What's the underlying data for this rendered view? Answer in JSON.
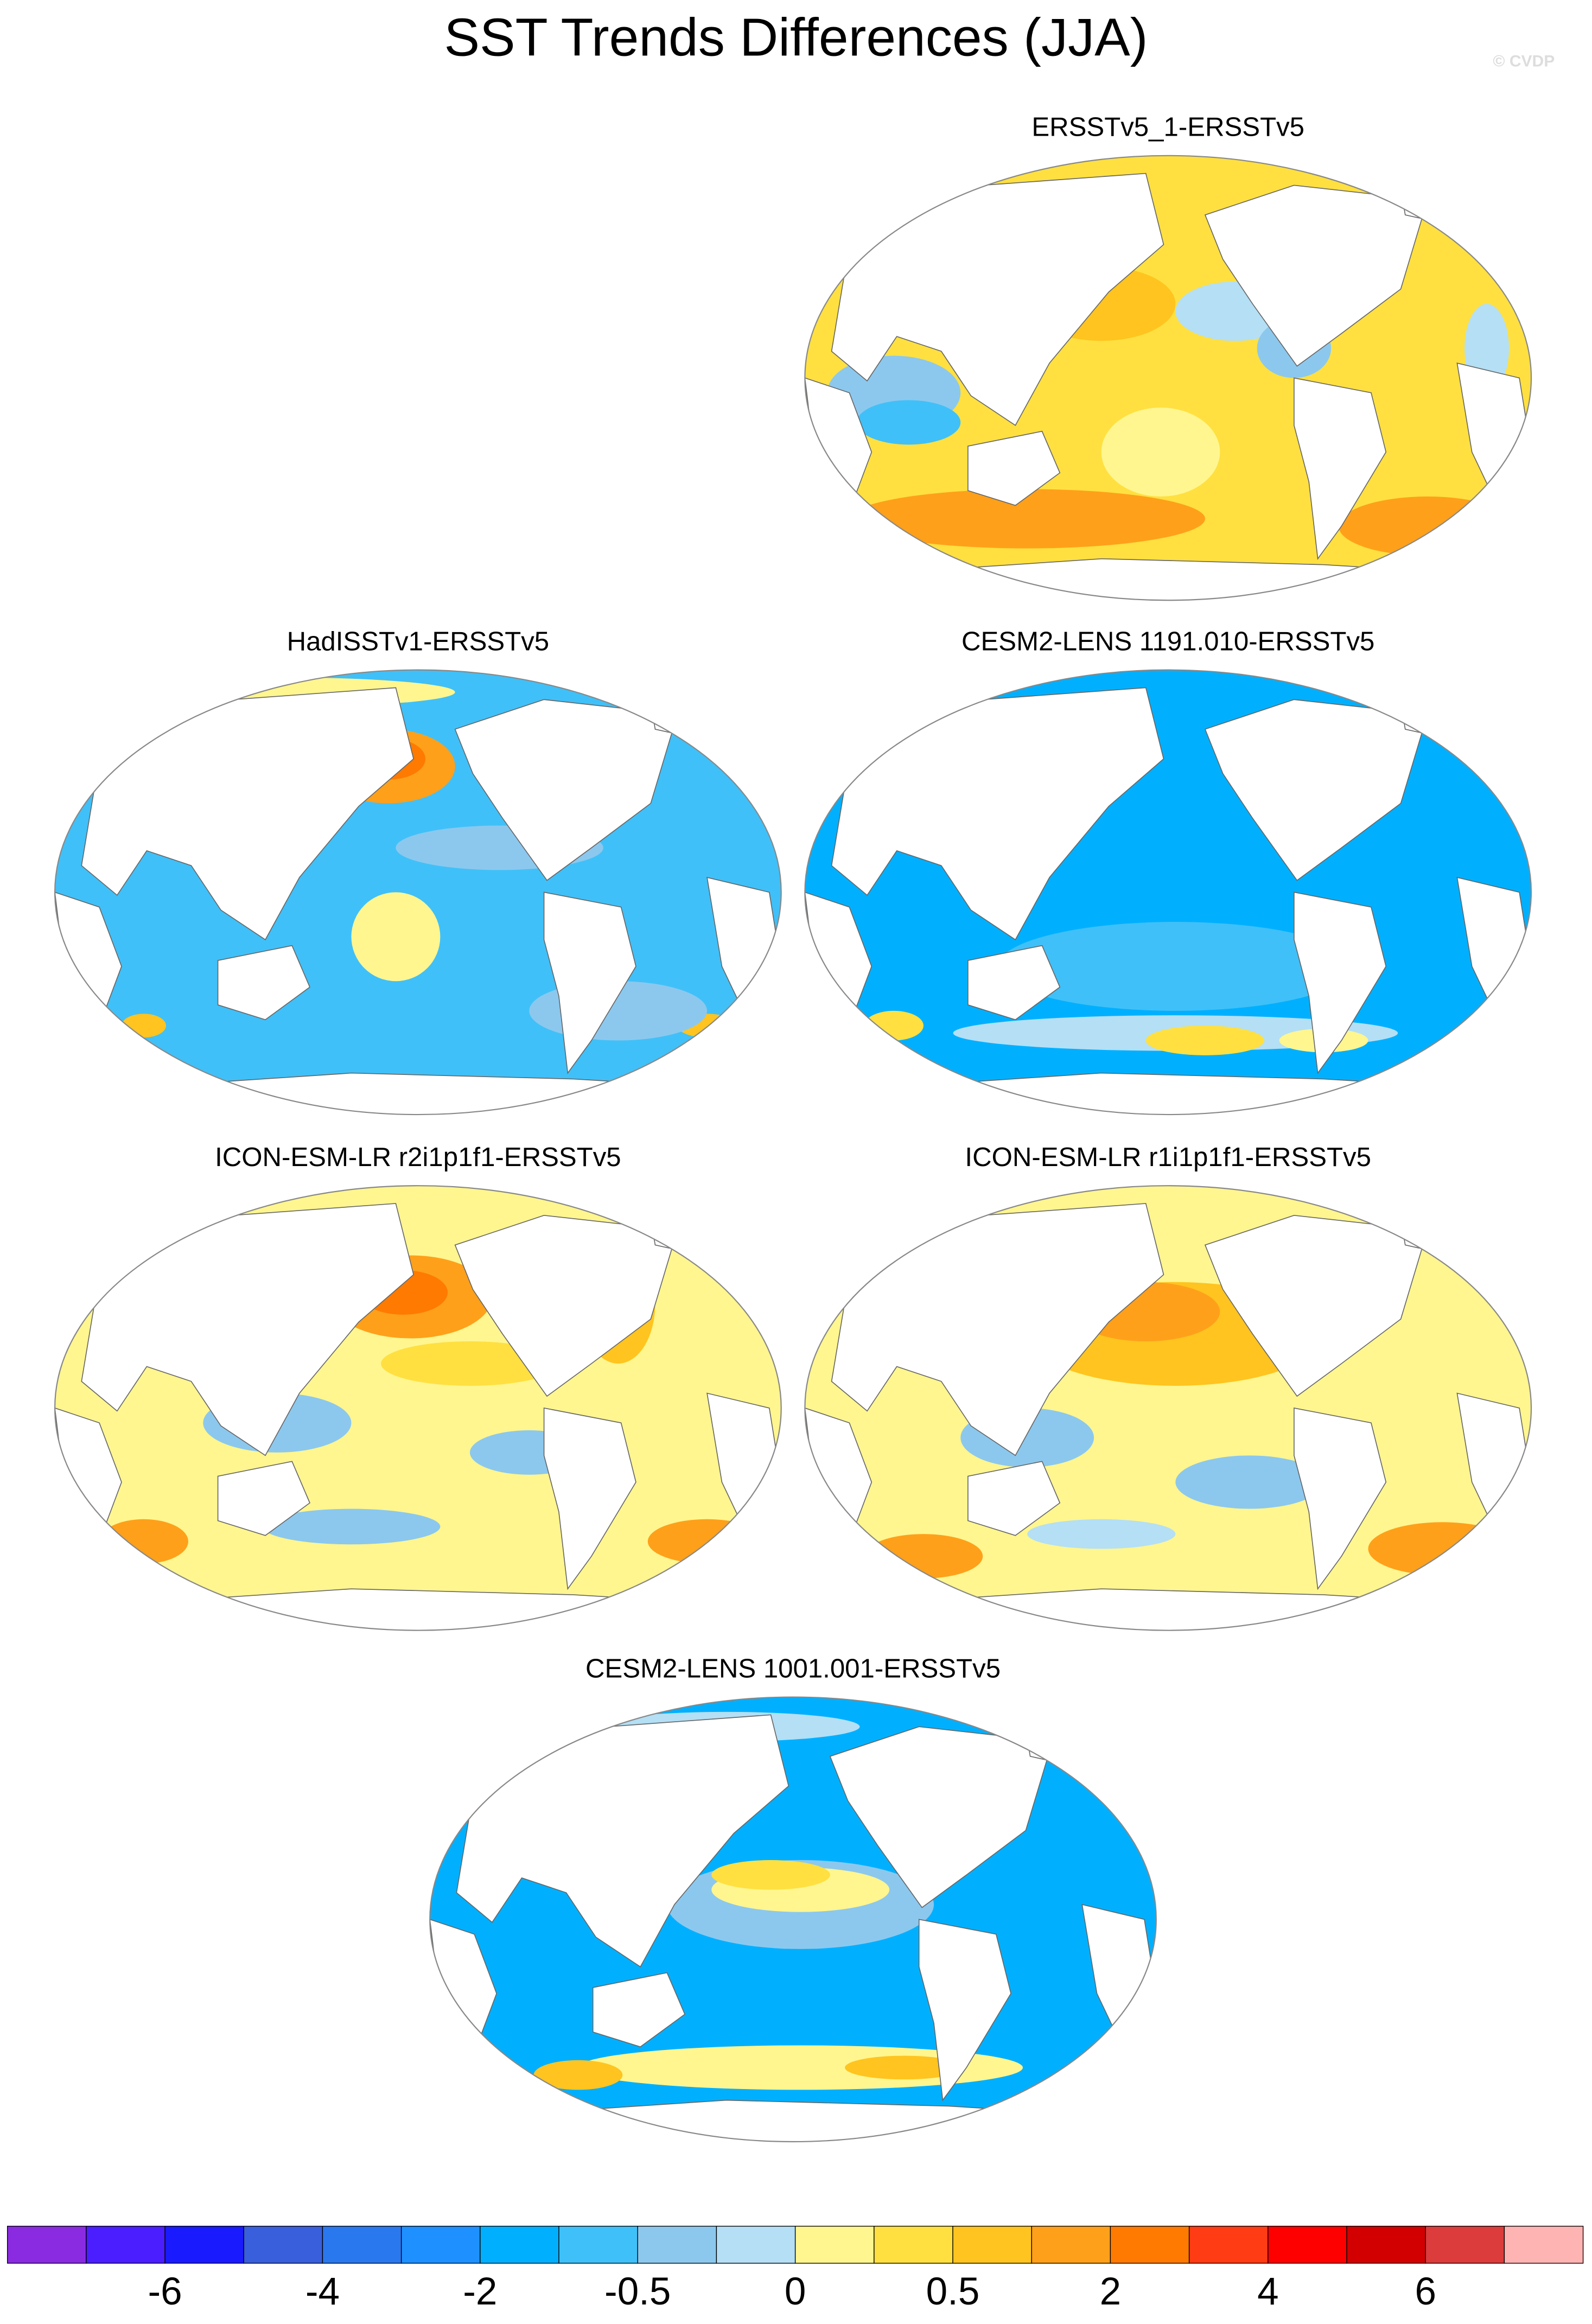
{
  "title": "SST Trends Differences (JJA)",
  "watermark": "© CVDP",
  "panels": [
    {
      "title": "ERSSTv5_1-ERSSTv5"
    },
    {
      "title": "HadISSTv1-ERSSTv5"
    },
    {
      "title": "CESM2-LENS 1191.010-ERSSTv5"
    },
    {
      "title": "ICON-ESM-LR r2i1p1f1-ERSSTv5"
    },
    {
      "title": "ICON-ESM-LR r1i1p1f1-ERSSTv5"
    },
    {
      "title": "CESM2-LENS 1001.001-ERSSTv5"
    }
  ],
  "colorbar": {
    "colors": [
      "#8a2be2",
      "#4b1eff",
      "#1a1aff",
      "#3a5fdc",
      "#2a78ee",
      "#1e90ff",
      "#00b0ff",
      "#40c0f8",
      "#8cc8ee",
      "#b4dff5",
      "#fff68f",
      "#ffe040",
      "#ffc41f",
      "#ffa01a",
      "#ff7a00",
      "#ff3c14",
      "#ff0000",
      "#d20000",
      "#dc3c3c",
      "#ffb4b4"
    ],
    "labels": [
      -6,
      -4,
      -2,
      -0.5,
      0,
      0.5,
      2,
      4,
      6
    ]
  }
}
